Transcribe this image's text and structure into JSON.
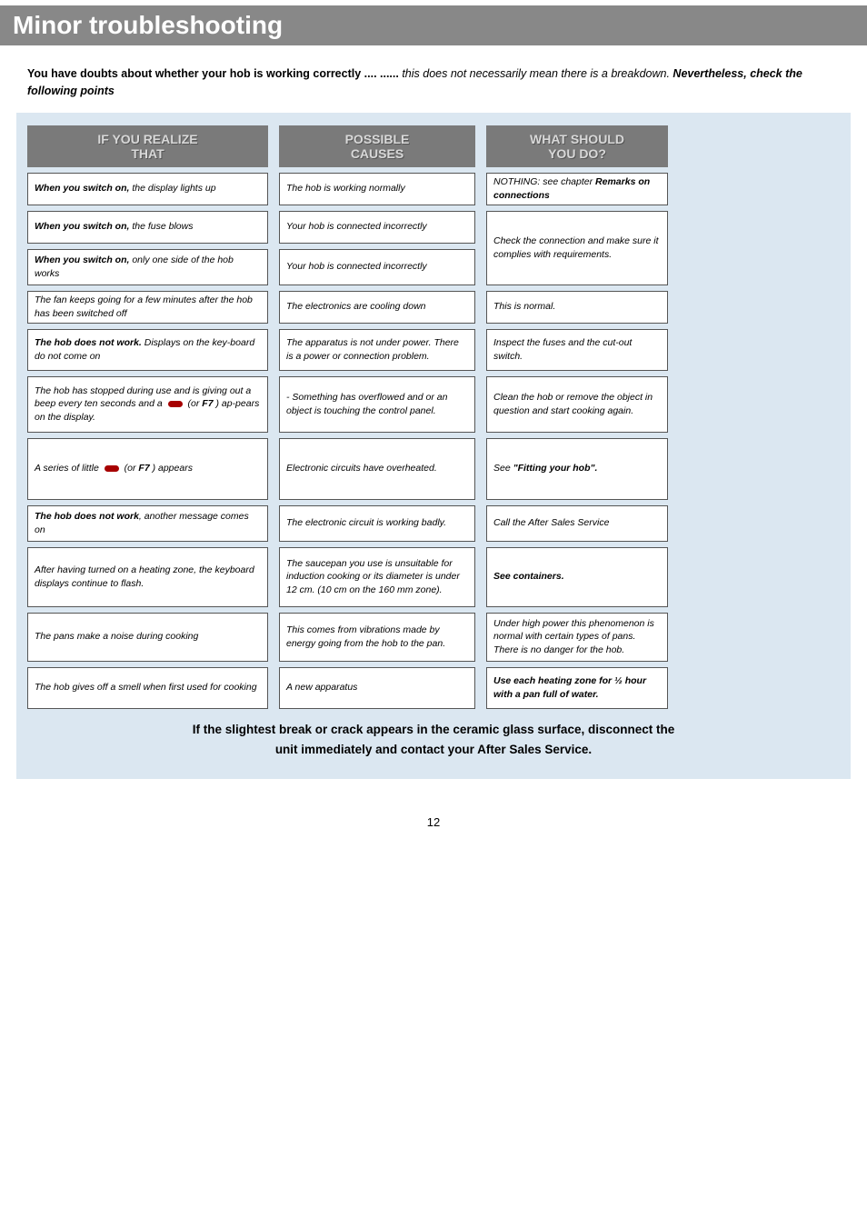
{
  "title": "Minor troubleshooting",
  "intro": {
    "lead_bold": "You have doubts about whether your hob is working correctly .... ......",
    "tail_italic": " this does not necessarily mean there is a breakdown. ",
    "tail_bolditalic": "Nevertheless, check the following points"
  },
  "headers": {
    "c1a": "IF YOU REALIZE",
    "c1b": "THAT",
    "c2a": "POSSIBLE",
    "c2b": "CAUSES",
    "c3a": "WHAT SHOULD",
    "c3b": "YOU DO?"
  },
  "rows": {
    "r1": {
      "realize_b": "When you switch on,",
      "realize_t": " the display lights up",
      "cause": "The hob is working normally",
      "do_pre": "NOTHING: see chapter ",
      "do_b": "Remarks on connections"
    },
    "r2": {
      "realize_b": "When you switch on,",
      "realize_t": " the fuse blows",
      "cause": "Your hob is connected incorrectly"
    },
    "r3": {
      "realize_b": "When you switch on,",
      "realize_t": " only one side of the hob works",
      "cause": "Your hob is connected incorrectly"
    },
    "r23_do": "Check the connection and make sure it complies with requirements.",
    "r4": {
      "realize": "The fan keeps going for a few minutes after the hob has been switched off",
      "cause": "The electronics are cooling down",
      "do": "This is normal."
    },
    "r5": {
      "realize_b": "The hob does not work.",
      "realize_t": "  Displays on the key-board do not come on",
      "cause": "The apparatus is not under power. There is a power or connection problem.",
      "do": "Inspect the fuses and the cut-out switch."
    },
    "r6": {
      "realize_pre": "The hob has stopped during use and is giving out a beep every ten seconds and a ",
      "realize_mid": " (or ",
      "realize_f7": "F7",
      "realize_post": " ) ap-pears on the display.",
      "cause": "- Something has overflowed and or an object is touching the control panel.",
      "do": "Clean the hob or remove the object in question and start cooking again."
    },
    "r7": {
      "realize_pre": "A series of little ",
      "realize_mid": " (or ",
      "realize_f7": "F7",
      "realize_post": " ) appears",
      "cause": "Electronic circuits have overheated.",
      "do_pre": "See ",
      "do_b": "\"Fitting your hob\"."
    },
    "r8": {
      "realize_b": "The hob does not work",
      "realize_t": ", another message comes on",
      "cause": "The electronic circuit is working badly.",
      "do": "Call the After Sales Service"
    },
    "r9": {
      "realize": "After having turned on a heating zone, the keyboard displays continue to flash.",
      "cause": "The saucepan you use is unsuitable for induction cooking or its diameter is under 12 cm. (10 cm on the 160 mm zone).",
      "do_b": "See containers."
    },
    "r10": {
      "realize": "The pans make a noise during cooking",
      "cause": "This comes from vibrations made by energy going from the hob to the pan.",
      "do": "Under high power this phenomenon is normal with certain types of pans. There is no danger for the hob."
    },
    "r11": {
      "realize": "The hob gives off a smell when first used for cooking",
      "cause": "A new apparatus",
      "do_b": "Use each heating zone for ½ hour with a pan full of water."
    }
  },
  "footer1": "If the slightest break or crack appears in the ceramic glass surface, disconnect the",
  "footer2": "unit immediately and contact your After Sales Service.",
  "pagenum": "12",
  "colors": {
    "panel_bg": "#dbe7f1",
    "title_bg": "#888888",
    "header_bg": "#7a7a7a",
    "pill": "#a70000"
  }
}
